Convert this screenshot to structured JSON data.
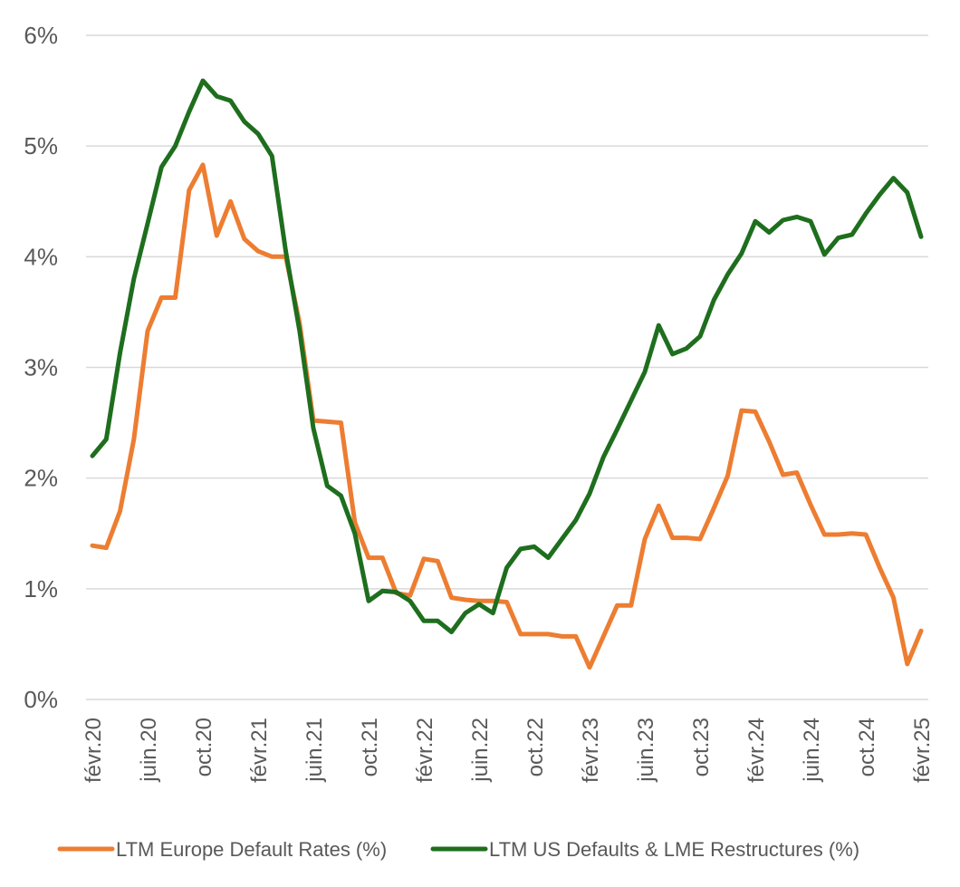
{
  "chart_data": {
    "type": "line",
    "title": "",
    "xlabel": "",
    "ylabel": "",
    "ylim": [
      0,
      6
    ],
    "yticks": [
      "0%",
      "1%",
      "2%",
      "3%",
      "4%",
      "5%",
      "6%"
    ],
    "grid": "horizontal",
    "legend_position": "bottom",
    "x": [
      "févr.20",
      "mars.20",
      "avr.20",
      "mai.20",
      "juin.20",
      "juil.20",
      "août.20",
      "sept.20",
      "oct.20",
      "nov.20",
      "déc.20",
      "janv.21",
      "févr.21",
      "mars.21",
      "avr.21",
      "mai.21",
      "juin.21",
      "juil.21",
      "août.21",
      "sept.21",
      "oct.21",
      "nov.21",
      "déc.21",
      "janv.22",
      "févr.22",
      "mars.22",
      "avr.22",
      "mai.22",
      "juin.22",
      "juil.22",
      "août.22",
      "sept.22",
      "oct.22",
      "nov.22",
      "déc.22",
      "janv.23",
      "févr.23",
      "mars.23",
      "avr.23",
      "mai.23",
      "juin.23",
      "juil.23",
      "août.23",
      "sept.23",
      "oct.23",
      "nov.23",
      "déc.23",
      "janv.24",
      "févr.24",
      "mars.24",
      "avr.24",
      "mai.24",
      "juin.24",
      "juil.24",
      "août.24",
      "sept.24",
      "oct.24",
      "nov.24",
      "déc.24",
      "janv.25",
      "févr.25"
    ],
    "xticks": [
      "févr.20",
      "juin.20",
      "oct.20",
      "févr.21",
      "juin.21",
      "oct.21",
      "févr.22",
      "juin.22",
      "oct.22",
      "févr.23",
      "juin.23",
      "oct.23",
      "févr.24",
      "juin.24",
      "oct.24",
      "févr.25"
    ],
    "series": [
      {
        "name": "LTM Europe Default Rates (%)",
        "color": "#ED7D31",
        "values": [
          1.39,
          1.37,
          1.7,
          2.35,
          3.33,
          3.63,
          3.63,
          4.6,
          4.83,
          4.19,
          4.5,
          4.16,
          4.05,
          4.0,
          4.0,
          3.4,
          2.52,
          2.51,
          2.5,
          1.6,
          1.28,
          1.28,
          0.96,
          0.94,
          1.27,
          1.25,
          0.92,
          0.9,
          0.89,
          0.89,
          0.88,
          0.59,
          0.59,
          0.59,
          0.57,
          0.57,
          0.29,
          0.57,
          0.85,
          0.85,
          1.45,
          1.75,
          1.46,
          1.46,
          1.45,
          1.73,
          2.02,
          2.61,
          2.6,
          2.33,
          2.03,
          2.05,
          1.76,
          1.49,
          1.49,
          1.5,
          1.49,
          1.19,
          0.92,
          0.32,
          0.62
        ]
      },
      {
        "name": "LTM US Defaults & LME Restructures (%)",
        "color": "#1E6E1E",
        "values": [
          2.2,
          2.35,
          3.13,
          3.8,
          4.3,
          4.81,
          5.0,
          5.31,
          5.59,
          5.45,
          5.41,
          5.22,
          5.11,
          4.91,
          4.05,
          3.33,
          2.45,
          1.93,
          1.84,
          1.5,
          0.89,
          0.98,
          0.97,
          0.89,
          0.71,
          0.71,
          0.61,
          0.78,
          0.86,
          0.78,
          1.19,
          1.36,
          1.38,
          1.28,
          1.45,
          1.62,
          1.86,
          2.19,
          2.44,
          2.7,
          2.96,
          3.38,
          3.12,
          3.17,
          3.28,
          3.61,
          3.84,
          4.03,
          4.32,
          4.22,
          4.33,
          4.36,
          4.32,
          4.02,
          4.17,
          4.2,
          4.39,
          4.56,
          4.71,
          4.58,
          4.18
        ]
      }
    ]
  }
}
